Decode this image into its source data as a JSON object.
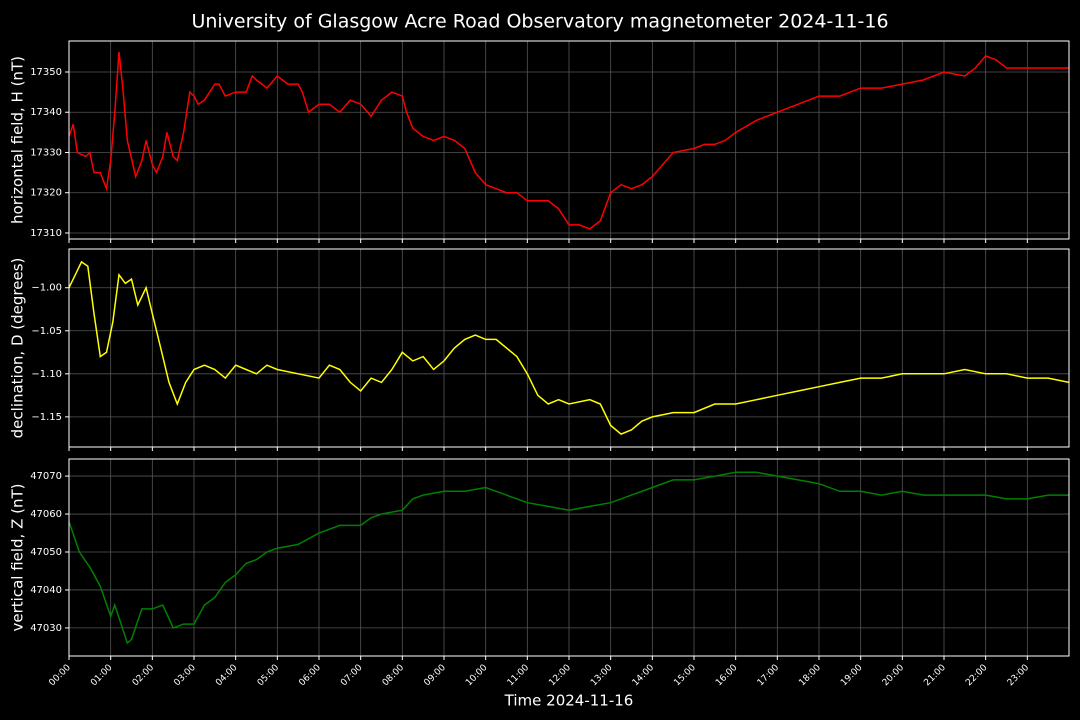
{
  "title": "University of Glasgow Acre Road Observatory magnetometer 2024-11-16",
  "chart_data": [
    {
      "type": "line",
      "ylabel": "horizontal field, H (nT)",
      "color": "#ff0000",
      "grid": true,
      "xlim": [
        0,
        24
      ],
      "ylim": [
        17308.5,
        17357.7
      ],
      "xticks": [
        0,
        1,
        2,
        3,
        4,
        5,
        6,
        7,
        8,
        9,
        10,
        11,
        12,
        13,
        14,
        15,
        16,
        17,
        18,
        19,
        20,
        21,
        22,
        23
      ],
      "yticks": [
        17310,
        17320,
        17330,
        17340,
        17350
      ],
      "x": [
        0,
        0.1,
        0.2,
        0.4,
        0.5,
        0.6,
        0.75,
        0.9,
        1.0,
        1.1,
        1.2,
        1.3,
        1.4,
        1.6,
        1.75,
        1.85,
        2.0,
        2.1,
        2.25,
        2.35,
        2.5,
        2.6,
        2.75,
        2.9,
        3.0,
        3.1,
        3.25,
        3.5,
        3.6,
        3.75,
        4.0,
        4.25,
        4.4,
        4.5,
        4.75,
        5.0,
        5.25,
        5.5,
        5.6,
        5.75,
        6.0,
        6.25,
        6.5,
        6.75,
        7.0,
        7.25,
        7.5,
        7.75,
        8.0,
        8.1,
        8.25,
        8.5,
        8.75,
        9.0,
        9.25,
        9.5,
        9.75,
        10.0,
        10.25,
        10.5,
        10.75,
        11.0,
        11.25,
        11.5,
        11.75,
        12.0,
        12.25,
        12.5,
        12.75,
        13.0,
        13.25,
        13.5,
        13.75,
        14.0,
        14.25,
        14.5,
        15.0,
        15.25,
        15.5,
        15.75,
        16.0,
        16.5,
        17.0,
        17.5,
        18.0,
        18.5,
        19.0,
        19.5,
        20.0,
        20.5,
        21.0,
        21.5,
        21.75,
        22.0,
        22.25,
        22.5,
        23.0,
        23.5,
        24.0
      ],
      "values": [
        17334,
        17337,
        17330,
        17329,
        17330,
        17325,
        17325,
        17321,
        17328,
        17340,
        17355,
        17345,
        17333,
        17324,
        17328,
        17333,
        17327,
        17325,
        17329,
        17335,
        17329,
        17328,
        17335,
        17345,
        17344,
        17342,
        17343,
        17347,
        17347,
        17344,
        17345,
        17345,
        17349,
        17348,
        17346,
        17349,
        17347,
        17347,
        17345,
        17340,
        17342,
        17342,
        17340,
        17343,
        17342,
        17339,
        17343,
        17345,
        17344,
        17340,
        17336,
        17334,
        17333,
        17334,
        17333,
        17331,
        17325,
        17322,
        17321,
        17320,
        17320,
        17318,
        17318,
        17318,
        17316,
        17312,
        17312,
        17311,
        17313,
        17320,
        17322,
        17321,
        17322,
        17324,
        17327,
        17330,
        17331,
        17332,
        17332,
        17333,
        17335,
        17338,
        17340,
        17342,
        17344,
        17344,
        17346,
        17346,
        17347,
        17348,
        17350,
        17349,
        17351,
        17354,
        17353,
        17351,
        17351,
        17351,
        17351
      ]
    },
    {
      "type": "line",
      "ylabel": "declination, D (degrees)",
      "color": "#ffff00",
      "grid": true,
      "xlim": [
        0,
        24
      ],
      "ylim": [
        -1.185,
        -0.955
      ],
      "xticks": [
        0,
        1,
        2,
        3,
        4,
        5,
        6,
        7,
        8,
        9,
        10,
        11,
        12,
        13,
        14,
        15,
        16,
        17,
        18,
        19,
        20,
        21,
        22,
        23
      ],
      "yticks": [
        {
          "value": -1.0,
          "label": "−1.00"
        },
        {
          "value": -1.05,
          "label": "−1.05"
        },
        {
          "value": -1.1,
          "label": "−1.10"
        },
        {
          "value": -1.15,
          "label": "−1.15"
        }
      ],
      "x": [
        0,
        0.15,
        0.3,
        0.45,
        0.6,
        0.75,
        0.9,
        1.05,
        1.2,
        1.35,
        1.5,
        1.65,
        1.85,
        2.0,
        2.2,
        2.4,
        2.6,
        2.8,
        3.0,
        3.25,
        3.5,
        3.75,
        4.0,
        4.25,
        4.5,
        4.75,
        5.0,
        5.5,
        6.0,
        6.25,
        6.5,
        6.75,
        7.0,
        7.25,
        7.5,
        7.75,
        8.0,
        8.25,
        8.5,
        8.75,
        9.0,
        9.25,
        9.5,
        9.75,
        10.0,
        10.25,
        10.5,
        10.75,
        11.0,
        11.25,
        11.5,
        11.75,
        12.0,
        12.5,
        12.75,
        13.0,
        13.25,
        13.5,
        13.75,
        14.0,
        14.5,
        15.0,
        15.5,
        16.0,
        16.5,
        17.0,
        17.5,
        18.0,
        18.5,
        19.0,
        19.5,
        20.0,
        20.5,
        21.0,
        21.5,
        22.0,
        22.5,
        23.0,
        23.5,
        24.0
      ],
      "values": [
        -1.0,
        -0.985,
        -0.97,
        -0.975,
        -1.03,
        -1.08,
        -1.075,
        -1.04,
        -0.985,
        -0.995,
        -0.99,
        -1.02,
        -1.0,
        -1.03,
        -1.07,
        -1.11,
        -1.135,
        -1.11,
        -1.095,
        -1.09,
        -1.095,
        -1.105,
        -1.09,
        -1.095,
        -1.1,
        -1.09,
        -1.095,
        -1.1,
        -1.105,
        -1.09,
        -1.095,
        -1.11,
        -1.12,
        -1.105,
        -1.11,
        -1.095,
        -1.075,
        -1.085,
        -1.08,
        -1.095,
        -1.085,
        -1.07,
        -1.06,
        -1.055,
        -1.06,
        -1.06,
        -1.07,
        -1.08,
        -1.1,
        -1.125,
        -1.135,
        -1.13,
        -1.135,
        -1.13,
        -1.135,
        -1.16,
        -1.17,
        -1.165,
        -1.155,
        -1.15,
        -1.145,
        -1.145,
        -1.135,
        -1.135,
        -1.13,
        -1.125,
        -1.12,
        -1.115,
        -1.11,
        -1.105,
        -1.105,
        -1.1,
        -1.1,
        -1.1,
        -1.095,
        -1.1,
        -1.1,
        -1.105,
        -1.105,
        -1.11
      ]
    },
    {
      "type": "line",
      "ylabel": "vertical field, Z (nT)",
      "xlabel": "Time 2024-11-16",
      "color": "#008000",
      "grid": true,
      "xlim": [
        0,
        24
      ],
      "ylim": [
        47022.6,
        47074.5
      ],
      "xticks": [
        {
          "value": 0,
          "label": "00:00"
        },
        {
          "value": 1,
          "label": "01:00"
        },
        {
          "value": 2,
          "label": "02:00"
        },
        {
          "value": 3,
          "label": "03:00"
        },
        {
          "value": 4,
          "label": "04:00"
        },
        {
          "value": 5,
          "label": "05:00"
        },
        {
          "value": 6,
          "label": "06:00"
        },
        {
          "value": 7,
          "label": "07:00"
        },
        {
          "value": 8,
          "label": "08:00"
        },
        {
          "value": 9,
          "label": "09:00"
        },
        {
          "value": 10,
          "label": "10:00"
        },
        {
          "value": 11,
          "label": "11:00"
        },
        {
          "value": 12,
          "label": "12:00"
        },
        {
          "value": 13,
          "label": "13:00"
        },
        {
          "value": 14,
          "label": "14:00"
        },
        {
          "value": 15,
          "label": "15:00"
        },
        {
          "value": 16,
          "label": "16:00"
        },
        {
          "value": 17,
          "label": "17:00"
        },
        {
          "value": 18,
          "label": "18:00"
        },
        {
          "value": 19,
          "label": "19:00"
        },
        {
          "value": 20,
          "label": "20:00"
        },
        {
          "value": 21,
          "label": "21:00"
        },
        {
          "value": 22,
          "label": "22:00"
        },
        {
          "value": 23,
          "label": "23:00"
        }
      ],
      "yticks": [
        47030,
        47040,
        47050,
        47060,
        47070
      ],
      "x": [
        0,
        0.25,
        0.5,
        0.75,
        1.0,
        1.1,
        1.25,
        1.4,
        1.5,
        1.75,
        2.0,
        2.25,
        2.5,
        2.75,
        3.0,
        3.25,
        3.5,
        3.75,
        4.0,
        4.25,
        4.5,
        4.75,
        5.0,
        5.5,
        6.0,
        6.5,
        7.0,
        7.25,
        7.5,
        8.0,
        8.25,
        8.5,
        9.0,
        9.5,
        10.0,
        10.5,
        11.0,
        11.5,
        12.0,
        12.5,
        13.0,
        13.5,
        14.0,
        14.5,
        15.0,
        15.5,
        16.0,
        16.5,
        17.0,
        17.5,
        18.0,
        18.5,
        19.0,
        19.5,
        20.0,
        20.5,
        21.0,
        21.5,
        22.0,
        22.5,
        23.0,
        23.5,
        24.0
      ],
      "values": [
        47058,
        47050,
        47046,
        47041,
        47033,
        47036,
        47031,
        47026,
        47027,
        47035,
        47035,
        47036,
        47030,
        47031,
        47031,
        47036,
        47038,
        47042,
        47044,
        47047,
        47048,
        47050,
        47051,
        47052,
        47055,
        47057,
        47057,
        47059,
        47060,
        47061,
        47064,
        47065,
        47066,
        47066,
        47067,
        47065,
        47063,
        47062,
        47061,
        47062,
        47063,
        47065,
        47067,
        47069,
        47069,
        47070,
        47071,
        47071,
        47070,
        47069,
        47068,
        47066,
        47066,
        47065,
        47066,
        47065,
        47065,
        47065,
        47065,
        47064,
        47064,
        47065,
        47065
      ]
    }
  ]
}
